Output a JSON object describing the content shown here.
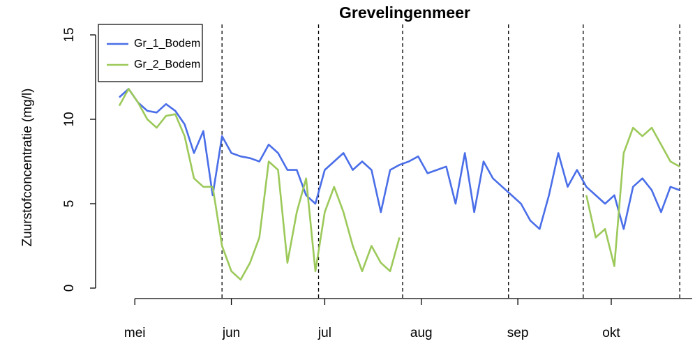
{
  "chart_data": {
    "type": "line",
    "title": "Grevelingenmeer",
    "y_label": "Zuurstofconcentratie (mg/l)",
    "x": [
      -5,
      -2,
      1,
      4,
      7,
      10,
      13,
      16,
      19,
      22,
      25,
      28,
      31,
      34,
      37,
      40,
      43,
      46,
      49,
      52,
      55,
      58,
      61,
      64,
      67,
      70,
      73,
      76,
      79,
      82,
      85,
      88,
      91,
      94,
      97,
      100,
      103,
      106,
      109,
      112,
      115,
      118,
      121,
      124,
      127,
      130,
      133,
      136,
      139,
      142,
      145,
      148,
      151,
      154,
      157,
      160,
      163,
      166,
      169,
      172,
      175
    ],
    "series": [
      {
        "name": "Gr_1_Bodem",
        "color": "#4a6ee8",
        "values": [
          11.3,
          11.8,
          11.0,
          10.5,
          10.4,
          10.9,
          10.5,
          9.7,
          8.0,
          9.3,
          5.5,
          9.0,
          8.0,
          7.8,
          7.7,
          7.5,
          8.5,
          8.0,
          7.0,
          7.0,
          5.5,
          5.0,
          7.0,
          7.5,
          8.0,
          7.0,
          7.5,
          7.0,
          4.5,
          7.0,
          7.3,
          7.5,
          7.8,
          6.8,
          7.0,
          7.2,
          5.0,
          8.0,
          4.5,
          7.5,
          6.5,
          6.0,
          5.5,
          5.0,
          4.0,
          3.5,
          5.5,
          8.0,
          6.0,
          7.0,
          6.0,
          5.5,
          5.0,
          5.5,
          3.5,
          6.0,
          6.5,
          5.8,
          4.5,
          6.0,
          5.8
        ]
      },
      {
        "name": "Gr_2_Bodem",
        "color": "#9cc95a",
        "values": [
          10.8,
          11.8,
          11.0,
          10.0,
          9.5,
          10.2,
          10.3,
          9.0,
          6.5,
          6.0,
          6.0,
          2.5,
          1.0,
          0.5,
          1.5,
          3.0,
          7.5,
          7.0,
          1.5,
          4.5,
          6.5,
          1.0,
          4.5,
          6.0,
          4.5,
          2.5,
          1.0,
          2.5,
          1.5,
          1.0,
          3.0,
          null,
          null,
          null,
          null,
          null,
          null,
          null,
          null,
          null,
          null,
          null,
          null,
          null,
          null,
          null,
          null,
          null,
          null,
          null,
          5.5,
          3.0,
          3.5,
          1.3,
          8.0,
          9.5,
          9.0,
          9.5,
          8.5,
          7.5,
          7.2
        ]
      }
    ],
    "xlim": [
      -12.6,
      179
    ],
    "xticks": [
      {
        "value": 0,
        "label": "mei"
      },
      {
        "value": 31,
        "label": "jun"
      },
      {
        "value": 61,
        "label": "jul"
      },
      {
        "value": 92,
        "label": "aug"
      },
      {
        "value": 123,
        "label": "sep"
      },
      {
        "value": 153,
        "label": "okt"
      }
    ],
    "ylim": [
      0,
      15
    ],
    "yticks": [
      0,
      5,
      10,
      15
    ],
    "vlines": [
      28,
      59,
      86,
      120,
      144,
      175
    ],
    "legend": "top-left"
  }
}
